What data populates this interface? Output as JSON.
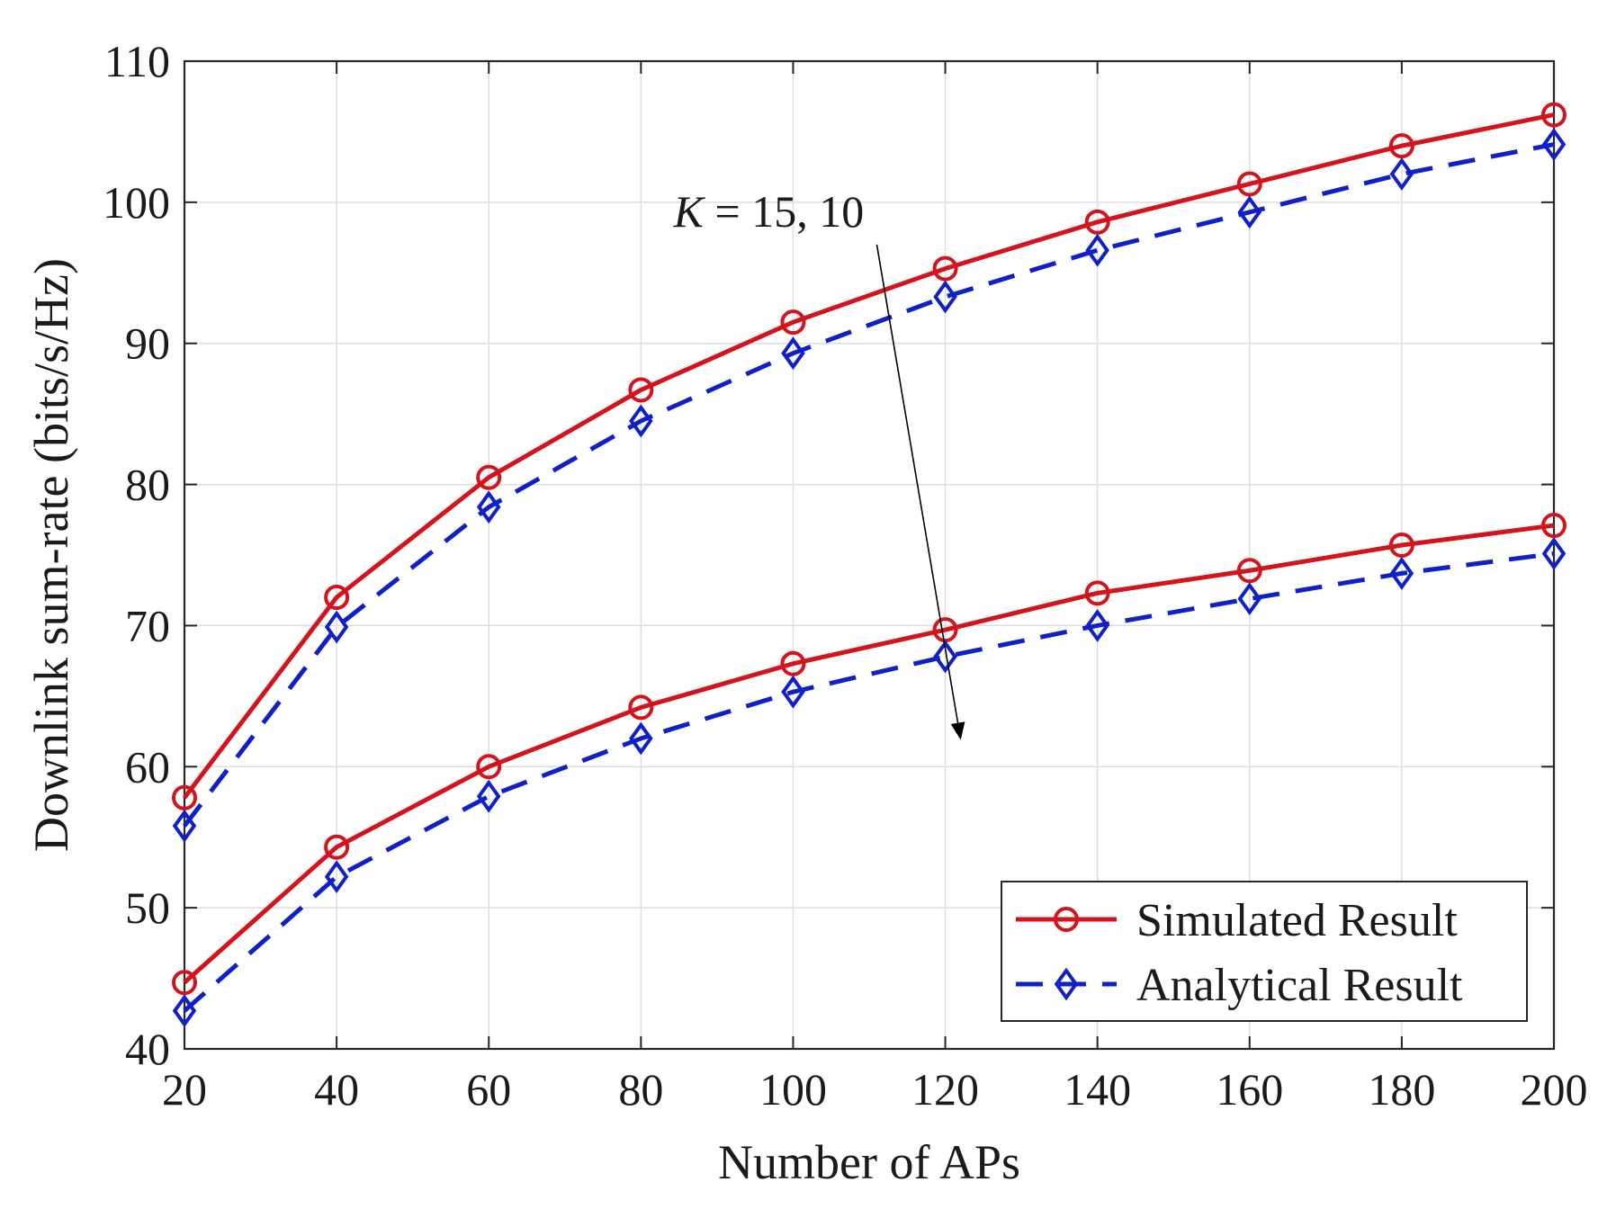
{
  "chart_data": {
    "type": "line",
    "title": "",
    "xlabel": "Number of APs",
    "ylabel": "Downlink sum-rate (bits/s/Hz)",
    "x": [
      20,
      40,
      60,
      80,
      100,
      120,
      140,
      160,
      180,
      200
    ],
    "xlim": [
      20,
      200
    ],
    "ylim": [
      40,
      110
    ],
    "xticks": [
      20,
      40,
      60,
      80,
      100,
      120,
      140,
      160,
      180,
      200
    ],
    "yticks": [
      40,
      50,
      60,
      70,
      80,
      90,
      100,
      110
    ],
    "grid": true,
    "legend_position": "bottom-right",
    "legend": [
      {
        "name": "Simulated Result",
        "color": "#d4141c",
        "style": "solid",
        "marker": "circle"
      },
      {
        "name": "Analytical Result",
        "color": "#1020c8",
        "style": "dashed",
        "marker": "diamond"
      }
    ],
    "series": [
      {
        "name": "Simulated Result",
        "group": "K = 15",
        "color": "#d4141c",
        "style": "solid",
        "marker": "circle",
        "values": [
          57.8,
          72.0,
          80.5,
          86.7,
          91.5,
          95.3,
          98.6,
          101.3,
          104.0,
          106.2
        ]
      },
      {
        "name": "Analytical Result",
        "group": "K = 15",
        "color": "#1020c8",
        "style": "dashed",
        "marker": "diamond",
        "values": [
          55.8,
          69.9,
          78.4,
          84.5,
          89.3,
          93.3,
          96.6,
          99.3,
          102.0,
          104.1
        ]
      },
      {
        "name": "Simulated Result",
        "group": "K = 10",
        "color": "#d4141c",
        "style": "solid",
        "marker": "circle",
        "values": [
          44.7,
          54.3,
          60.0,
          64.2,
          67.3,
          69.7,
          72.3,
          73.9,
          75.7,
          77.1
        ]
      },
      {
        "name": "Analytical Result",
        "group": "K = 10",
        "color": "#1020c8",
        "style": "dashed",
        "marker": "diamond",
        "values": [
          42.7,
          52.2,
          57.9,
          62.0,
          65.3,
          67.8,
          70.0,
          71.9,
          73.7,
          75.1
        ]
      }
    ],
    "annotation": {
      "italic": "K",
      "text": " = 15, 10",
      "arrow_from": [
        111,
        97
      ],
      "arrow_to": [
        122,
        62
      ]
    }
  }
}
